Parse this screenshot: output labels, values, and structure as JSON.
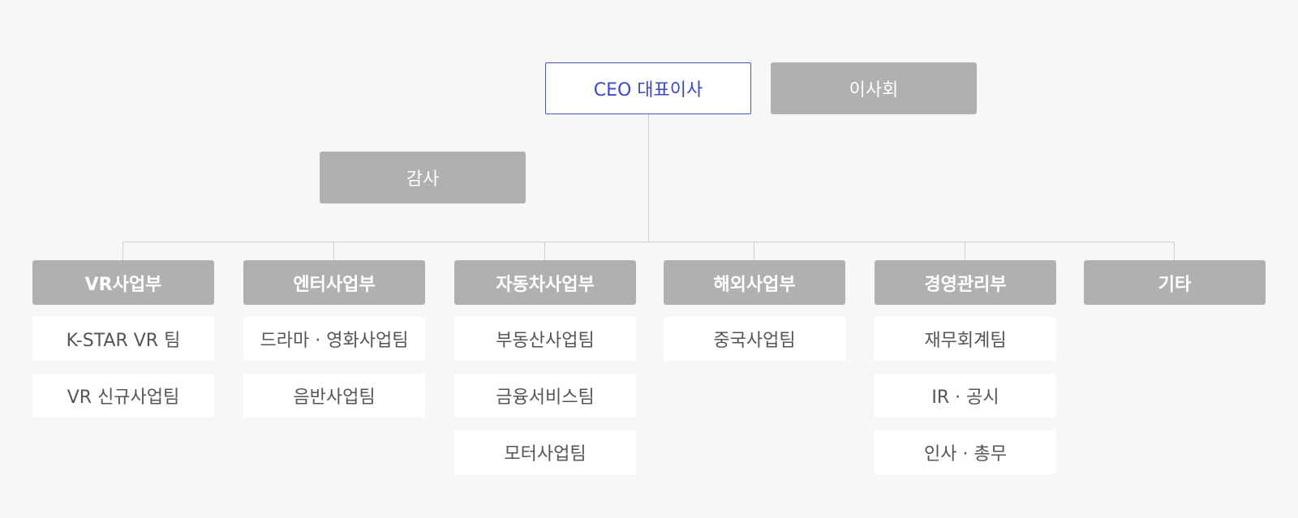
{
  "ceo": "CEO 대표이사",
  "board": "이사회",
  "audit": "감사",
  "divisions": [
    {
      "name": "VR사업부",
      "teams": [
        "K-STAR VR 팀",
        "VR 신규사업팀"
      ]
    },
    {
      "name": "엔터사업부",
      "teams": [
        "드라마 · 영화사업팀",
        "음반사업팀"
      ]
    },
    {
      "name": "자동차사업부",
      "teams": [
        "부동산사업팀",
        "금융서비스팀",
        "모터사업팀"
      ]
    },
    {
      "name": "해외사업부",
      "teams": [
        "중국사업팀"
      ]
    },
    {
      "name": "경영관리부",
      "teams": [
        "재무회계팀",
        "IR · 공시",
        "인사 · 총무"
      ]
    },
    {
      "name": "기타",
      "teams": []
    }
  ]
}
